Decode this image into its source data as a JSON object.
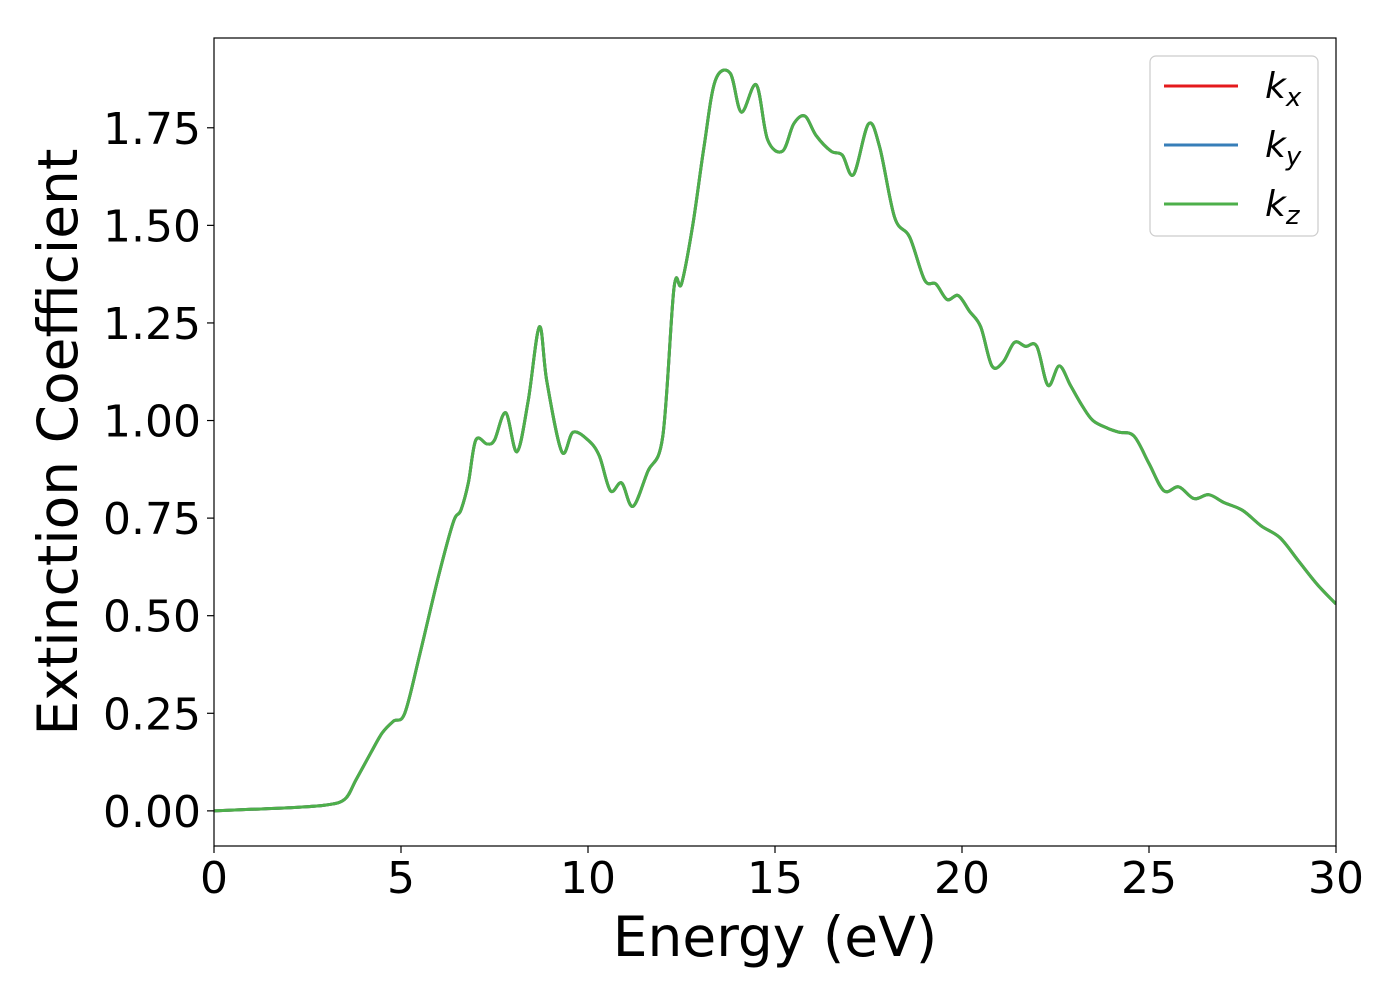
{
  "chart_data": {
    "type": "line",
    "title": "",
    "xlabel": "Energy (eV)",
    "ylabel": "Extinction Coefficient",
    "xlim": [
      0,
      30
    ],
    "ylim": [
      -0.09,
      1.98
    ],
    "xticks": [
      0,
      5,
      10,
      15,
      20,
      25,
      30
    ],
    "xtick_labels": [
      "0",
      "5",
      "10",
      "15",
      "20",
      "25",
      "30"
    ],
    "yticks": [
      0.0,
      0.25,
      0.5,
      0.75,
      1.0,
      1.25,
      1.5,
      1.75
    ],
    "ytick_labels": [
      "0.00",
      "0.25",
      "0.50",
      "0.75",
      "1.00",
      "1.25",
      "1.50",
      "1.75"
    ],
    "grid": false,
    "legend_position": "top-right",
    "series": [
      {
        "name": "k_x",
        "label_main": "k",
        "label_sub": "x",
        "color": "#e41a1c",
        "x": [
          0,
          1,
          2,
          3,
          3.5,
          3.8,
          4.2,
          4.5,
          4.8,
          5.1,
          5.5,
          6.0,
          6.4,
          6.6,
          6.8,
          7.0,
          7.3,
          7.5,
          7.8,
          8.1,
          8.4,
          8.7,
          8.9,
          9.3,
          9.6,
          10.0,
          10.3,
          10.6,
          10.9,
          11.2,
          11.6,
          12.0,
          12.3,
          12.5,
          12.8,
          13.1,
          13.4,
          13.8,
          14.1,
          14.5,
          14.8,
          15.2,
          15.5,
          15.8,
          16.1,
          16.5,
          16.8,
          17.1,
          17.5,
          17.8,
          18.2,
          18.6,
          19.0,
          19.3,
          19.6,
          19.9,
          20.2,
          20.5,
          20.8,
          21.1,
          21.4,
          21.7,
          22.0,
          22.3,
          22.6,
          22.9,
          23.2,
          23.5,
          23.9,
          24.2,
          24.6,
          25.0,
          25.4,
          25.8,
          26.2,
          26.6,
          27.0,
          27.5,
          28.0,
          28.5,
          29.0,
          29.5,
          30.0
        ],
        "y": [
          0.0,
          0.004,
          0.008,
          0.015,
          0.03,
          0.08,
          0.15,
          0.2,
          0.23,
          0.25,
          0.4,
          0.6,
          0.74,
          0.77,
          0.84,
          0.95,
          0.94,
          0.95,
          1.02,
          0.92,
          1.05,
          1.24,
          1.1,
          0.92,
          0.97,
          0.95,
          0.91,
          0.82,
          0.84,
          0.78,
          0.87,
          0.96,
          1.34,
          1.35,
          1.5,
          1.7,
          1.87,
          1.89,
          1.79,
          1.86,
          1.72,
          1.69,
          1.76,
          1.78,
          1.73,
          1.69,
          1.68,
          1.63,
          1.76,
          1.7,
          1.52,
          1.47,
          1.36,
          1.35,
          1.31,
          1.32,
          1.28,
          1.24,
          1.14,
          1.15,
          1.2,
          1.19,
          1.19,
          1.09,
          1.14,
          1.09,
          1.04,
          1.0,
          0.98,
          0.97,
          0.96,
          0.89,
          0.82,
          0.83,
          0.8,
          0.81,
          0.79,
          0.77,
          0.73,
          0.7,
          0.64,
          0.58,
          0.53
        ]
      },
      {
        "name": "k_y",
        "label_main": "k",
        "label_sub": "y",
        "color": "#377eb8",
        "x": [
          0,
          1,
          2,
          3,
          3.5,
          3.8,
          4.2,
          4.5,
          4.8,
          5.1,
          5.5,
          6.0,
          6.4,
          6.6,
          6.8,
          7.0,
          7.3,
          7.5,
          7.8,
          8.1,
          8.4,
          8.7,
          8.9,
          9.3,
          9.6,
          10.0,
          10.3,
          10.6,
          10.9,
          11.2,
          11.6,
          12.0,
          12.3,
          12.5,
          12.8,
          13.1,
          13.4,
          13.8,
          14.1,
          14.5,
          14.8,
          15.2,
          15.5,
          15.8,
          16.1,
          16.5,
          16.8,
          17.1,
          17.5,
          17.8,
          18.2,
          18.6,
          19.0,
          19.3,
          19.6,
          19.9,
          20.2,
          20.5,
          20.8,
          21.1,
          21.4,
          21.7,
          22.0,
          22.3,
          22.6,
          22.9,
          23.2,
          23.5,
          23.9,
          24.2,
          24.6,
          25.0,
          25.4,
          25.8,
          26.2,
          26.6,
          27.0,
          27.5,
          28.0,
          28.5,
          29.0,
          29.5,
          30.0
        ],
        "y": [
          0.0,
          0.004,
          0.008,
          0.015,
          0.03,
          0.08,
          0.15,
          0.2,
          0.23,
          0.25,
          0.4,
          0.6,
          0.74,
          0.77,
          0.84,
          0.95,
          0.94,
          0.95,
          1.02,
          0.92,
          1.05,
          1.24,
          1.1,
          0.92,
          0.97,
          0.95,
          0.91,
          0.82,
          0.84,
          0.78,
          0.87,
          0.96,
          1.34,
          1.35,
          1.5,
          1.7,
          1.87,
          1.89,
          1.79,
          1.86,
          1.72,
          1.69,
          1.76,
          1.78,
          1.73,
          1.69,
          1.68,
          1.63,
          1.76,
          1.7,
          1.52,
          1.47,
          1.36,
          1.35,
          1.31,
          1.32,
          1.28,
          1.24,
          1.14,
          1.15,
          1.2,
          1.19,
          1.19,
          1.09,
          1.14,
          1.09,
          1.04,
          1.0,
          0.98,
          0.97,
          0.96,
          0.89,
          0.82,
          0.83,
          0.8,
          0.81,
          0.79,
          0.77,
          0.73,
          0.7,
          0.64,
          0.58,
          0.53
        ]
      },
      {
        "name": "k_z",
        "label_main": "k",
        "label_sub": "z",
        "color": "#4daf4a",
        "x": [
          0,
          1,
          2,
          3,
          3.5,
          3.8,
          4.2,
          4.5,
          4.8,
          5.1,
          5.5,
          6.0,
          6.4,
          6.6,
          6.8,
          7.0,
          7.3,
          7.5,
          7.8,
          8.1,
          8.4,
          8.7,
          8.9,
          9.3,
          9.6,
          10.0,
          10.3,
          10.6,
          10.9,
          11.2,
          11.6,
          12.0,
          12.3,
          12.5,
          12.8,
          13.1,
          13.4,
          13.8,
          14.1,
          14.5,
          14.8,
          15.2,
          15.5,
          15.8,
          16.1,
          16.5,
          16.8,
          17.1,
          17.5,
          17.8,
          18.2,
          18.6,
          19.0,
          19.3,
          19.6,
          19.9,
          20.2,
          20.5,
          20.8,
          21.1,
          21.4,
          21.7,
          22.0,
          22.3,
          22.6,
          22.9,
          23.2,
          23.5,
          23.9,
          24.2,
          24.6,
          25.0,
          25.4,
          25.8,
          26.2,
          26.6,
          27.0,
          27.5,
          28.0,
          28.5,
          29.0,
          29.5,
          30.0
        ],
        "y": [
          0.0,
          0.004,
          0.008,
          0.015,
          0.03,
          0.08,
          0.15,
          0.2,
          0.23,
          0.25,
          0.4,
          0.6,
          0.74,
          0.77,
          0.84,
          0.95,
          0.94,
          0.95,
          1.02,
          0.92,
          1.05,
          1.24,
          1.1,
          0.92,
          0.97,
          0.95,
          0.91,
          0.82,
          0.84,
          0.78,
          0.87,
          0.96,
          1.34,
          1.35,
          1.5,
          1.7,
          1.87,
          1.89,
          1.79,
          1.86,
          1.72,
          1.69,
          1.76,
          1.78,
          1.73,
          1.69,
          1.68,
          1.63,
          1.76,
          1.7,
          1.52,
          1.47,
          1.36,
          1.35,
          1.31,
          1.32,
          1.28,
          1.24,
          1.14,
          1.15,
          1.2,
          1.19,
          1.19,
          1.09,
          1.14,
          1.09,
          1.04,
          1.0,
          0.98,
          0.97,
          0.96,
          0.89,
          0.82,
          0.83,
          0.8,
          0.81,
          0.79,
          0.77,
          0.73,
          0.7,
          0.64,
          0.58,
          0.53
        ]
      }
    ]
  }
}
